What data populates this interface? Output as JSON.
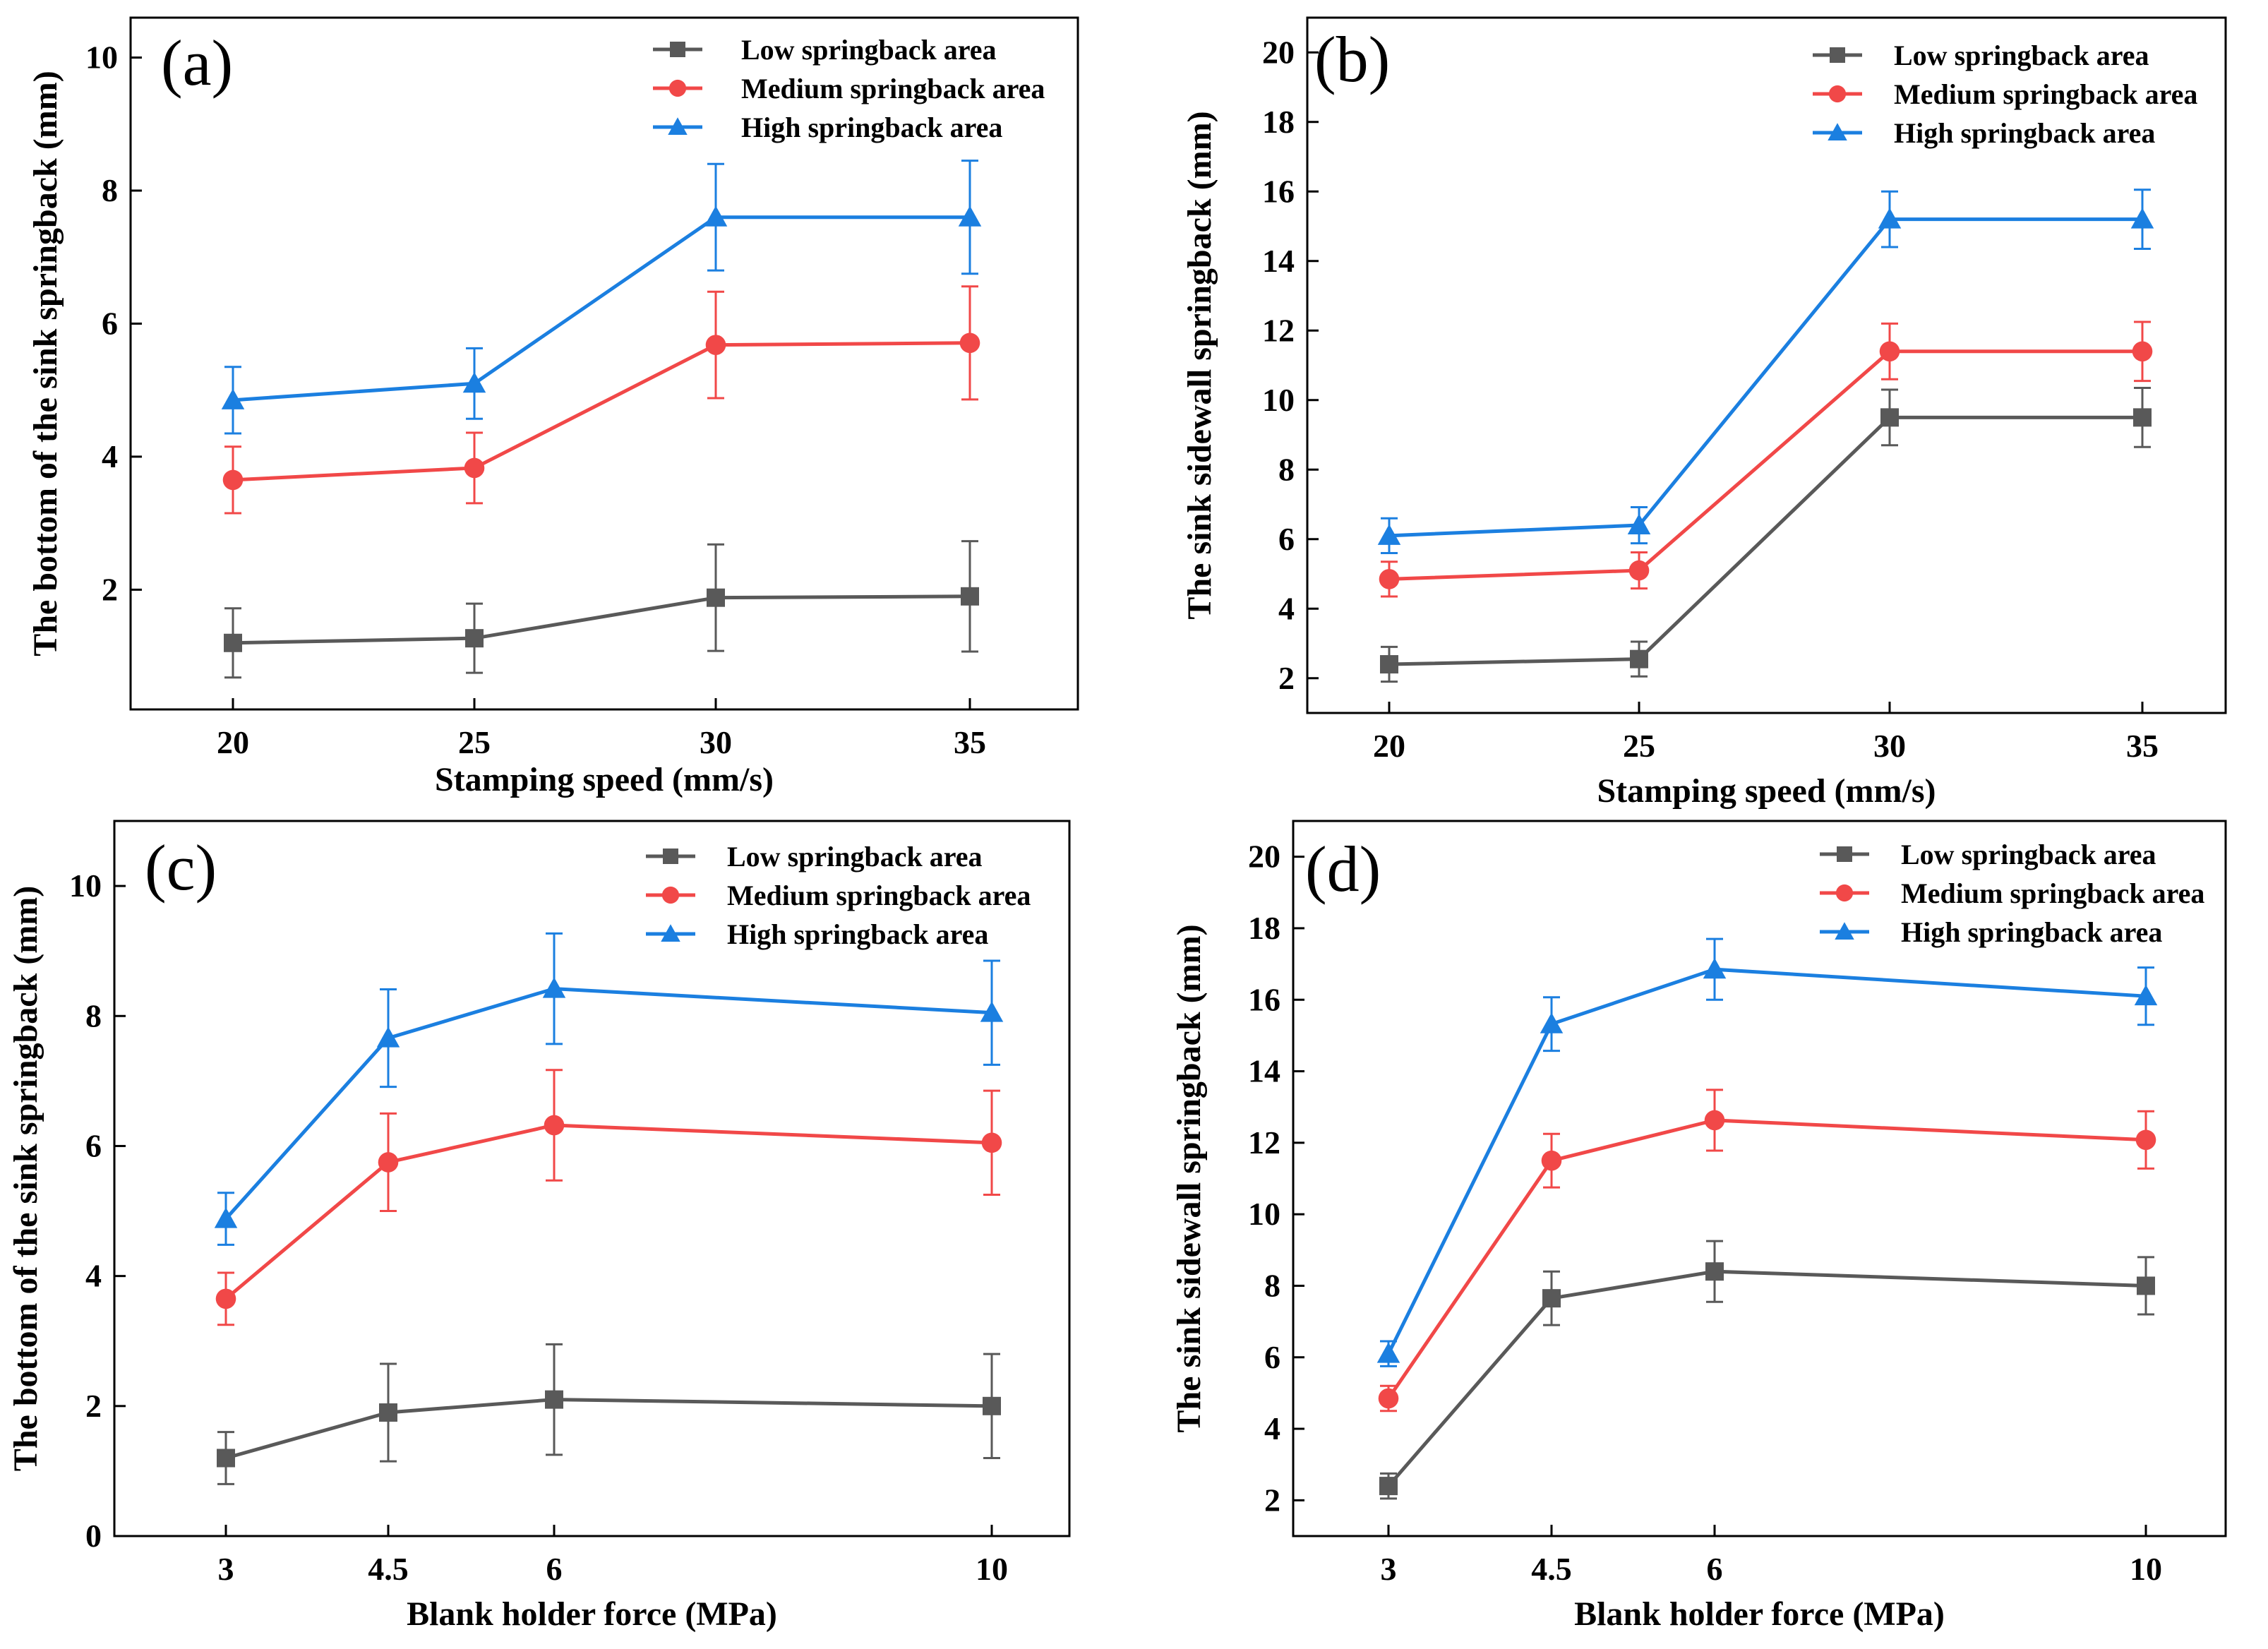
{
  "figure": {
    "colors": {
      "low": "#595959",
      "medium": "#f14848",
      "high": "#1b7fe0",
      "axis": "#000000"
    },
    "legend": [
      "Low springback area",
      "Medium springback area",
      "High springback area"
    ]
  },
  "chart_data": [
    {
      "type": "line",
      "panel": "(a)",
      "xlabel": "Stamping speed (mm/s)",
      "ylabel": "The bottom of the sink springback (mm)",
      "categories": [
        "20",
        "25",
        "30",
        "35"
      ],
      "ylim": [
        0.2,
        10.6
      ],
      "yticks": [
        2,
        4,
        6,
        8,
        10
      ],
      "series": [
        {
          "name": "Low springback area",
          "values": [
            1.2,
            1.27,
            1.88,
            1.9
          ],
          "errors": [
            0.52,
            0.52,
            0.8,
            0.83
          ]
        },
        {
          "name": "Medium springback area",
          "values": [
            3.65,
            3.83,
            5.68,
            5.71
          ],
          "errors": [
            0.5,
            0.53,
            0.8,
            0.85
          ]
        },
        {
          "name": "High springback area",
          "values": [
            4.85,
            5.1,
            7.6,
            7.6
          ],
          "errors": [
            0.5,
            0.53,
            0.8,
            0.85
          ]
        }
      ]
    },
    {
      "type": "line",
      "panel": "(b)",
      "xlabel": "Stamping speed (mm/s)",
      "ylabel": "The sink sidewall springback (mm)",
      "categories": [
        "20",
        "25",
        "30",
        "35"
      ],
      "ylim": [
        1,
        21
      ],
      "yticks": [
        2,
        4,
        6,
        8,
        10,
        12,
        14,
        16,
        18,
        20
      ],
      "series": [
        {
          "name": "Low springback area",
          "values": [
            2.4,
            2.55,
            9.5,
            9.5
          ],
          "errors": [
            0.5,
            0.5,
            0.8,
            0.85
          ]
        },
        {
          "name": "Medium springback area",
          "values": [
            4.85,
            5.1,
            11.4,
            11.4
          ],
          "errors": [
            0.5,
            0.52,
            0.8,
            0.85
          ]
        },
        {
          "name": "High springback area",
          "values": [
            6.1,
            6.4,
            15.2,
            15.2
          ],
          "errors": [
            0.5,
            0.52,
            0.8,
            0.85
          ]
        }
      ]
    },
    {
      "type": "line",
      "panel": "(c)",
      "xlabel": "Blank holder force (MPa)",
      "ylabel": "The bottom of the sink springback (mm)",
      "categories": [
        "3",
        "4.5",
        "6",
        "10"
      ],
      "x": [
        3,
        4.5,
        6,
        10
      ],
      "xlim": [
        2,
        11
      ],
      "ylim": [
        0,
        11
      ],
      "yticks": [
        0,
        2,
        4,
        6,
        8,
        10
      ],
      "series": [
        {
          "name": "Low springback area",
          "values": [
            1.2,
            1.9,
            2.1,
            2.0
          ],
          "errors": [
            0.4,
            0.75,
            0.85,
            0.8
          ]
        },
        {
          "name": "Medium springback area",
          "values": [
            3.65,
            5.75,
            6.32,
            6.05
          ],
          "errors": [
            0.4,
            0.75,
            0.85,
            0.8
          ]
        },
        {
          "name": "High springback area",
          "values": [
            4.88,
            7.66,
            8.42,
            8.05
          ],
          "errors": [
            0.4,
            0.75,
            0.85,
            0.8
          ]
        }
      ]
    },
    {
      "type": "line",
      "panel": "(d)",
      "xlabel": "Blank holder force (MPa)",
      "ylabel": "The sink sidewall springback (mm)",
      "categories": [
        "3",
        "4.5",
        "6",
        "10"
      ],
      "x": [
        3,
        4.5,
        6,
        10
      ],
      "xlim": [
        2,
        11
      ],
      "ylim": [
        1,
        21
      ],
      "yticks": [
        2,
        4,
        6,
        8,
        10,
        12,
        14,
        16,
        18,
        20
      ],
      "series": [
        {
          "name": "Low springback area",
          "values": [
            2.4,
            7.65,
            8.4,
            8.0
          ],
          "errors": [
            0.35,
            0.75,
            0.85,
            0.8
          ]
        },
        {
          "name": "Medium springback area",
          "values": [
            4.85,
            11.5,
            12.63,
            12.08
          ],
          "errors": [
            0.35,
            0.75,
            0.85,
            0.8
          ]
        },
        {
          "name": "High springback area",
          "values": [
            6.1,
            15.32,
            16.85,
            16.1
          ],
          "errors": [
            0.35,
            0.75,
            0.85,
            0.8
          ]
        }
      ]
    }
  ]
}
